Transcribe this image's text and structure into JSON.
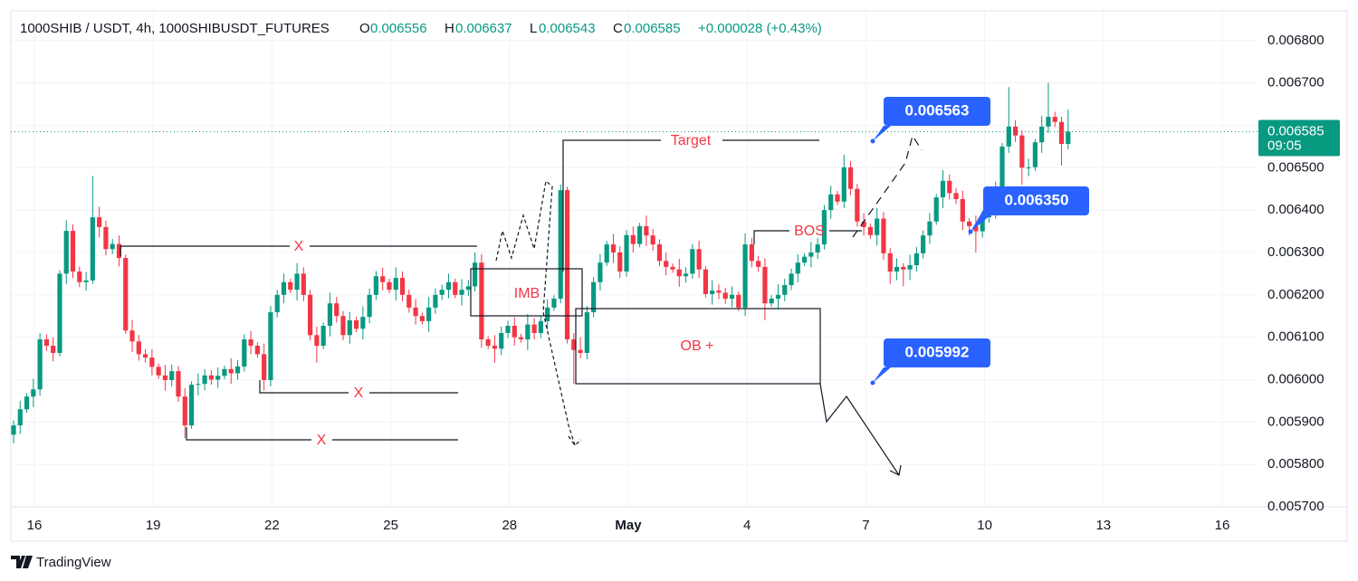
{
  "header": {
    "symbol": "1000SHIB / USDT, 4h, 1000SHIBUSDT_FUTURES",
    "o_label": "O",
    "o": "0.006556",
    "h_label": "H",
    "h": "0.006637",
    "l_label": "L",
    "l": "0.006543",
    "c_label": "C",
    "c": "0.006585",
    "change": "+0.000028 (+0.43%)"
  },
  "chart_data": {
    "type": "candlestick",
    "up_color": "#089981",
    "down_color": "#f23645",
    "grid": true,
    "ylim": [
      0.0057,
      0.00687
    ],
    "yticks": [
      {
        "value": 0.0057,
        "label": "0.005700"
      },
      {
        "value": 0.0058,
        "label": "0.005800"
      },
      {
        "value": 0.0059,
        "label": "0.005900"
      },
      {
        "value": 0.006,
        "label": "0.006000"
      },
      {
        "value": 0.0061,
        "label": "0.006100"
      },
      {
        "value": 0.0062,
        "label": "0.006200"
      },
      {
        "value": 0.0063,
        "label": "0.006300"
      },
      {
        "value": 0.0064,
        "label": "0.006400"
      },
      {
        "value": 0.0065,
        "label": "0.006500"
      },
      {
        "value": 0.0066,
        "label": "0.006600"
      },
      {
        "value": 0.0067,
        "label": "0.006700"
      },
      {
        "value": 0.0068,
        "label": "0.006800"
      }
    ],
    "xticks": [
      "16",
      "19",
      "22",
      "25",
      "28",
      "May",
      "4",
      "7",
      "10",
      "13",
      "16"
    ],
    "last_price_label": "0.006585",
    "countdown": "09:05",
    "ohlc": [
      [
        0.00587,
        0.005904,
        0.00585,
        0.005892
      ],
      [
        0.005892,
        0.00595,
        0.005872,
        0.00593
      ],
      [
        0.00593,
        0.005968,
        0.005922,
        0.00596
      ],
      [
        0.00596,
        0.006002,
        0.005935,
        0.005977
      ],
      [
        0.005977,
        0.00611,
        0.005962,
        0.006095
      ],
      [
        0.006095,
        0.006107,
        0.006068,
        0.00608
      ],
      [
        0.00608,
        0.0061,
        0.006043,
        0.006063
      ],
      [
        0.006063,
        0.006258,
        0.006055,
        0.00625
      ],
      [
        0.00625,
        0.006376,
        0.006225,
        0.006351
      ],
      [
        0.006351,
        0.006366,
        0.00624,
        0.006255
      ],
      [
        0.006255,
        0.006267,
        0.006218,
        0.00623
      ],
      [
        0.00623,
        0.006254,
        0.00621,
        0.006234
      ],
      [
        0.006234,
        0.00648,
        0.006226,
        0.006383
      ],
      [
        0.006383,
        0.006408,
        0.006335,
        0.00636
      ],
      [
        0.00636,
        0.006375,
        0.006293,
        0.006308
      ],
      [
        0.006308,
        0.006332,
        0.006296,
        0.00632
      ],
      [
        0.00632,
        0.00634,
        0.006267,
        0.006287
      ],
      [
        0.006287,
        0.006295,
        0.006108,
        0.006116
      ],
      [
        0.006116,
        0.006141,
        0.006065,
        0.00609
      ],
      [
        0.00609,
        0.006105,
        0.006045,
        0.00606
      ],
      [
        0.00606,
        0.006072,
        0.00604,
        0.006052
      ],
      [
        0.006052,
        0.006072,
        0.00601,
        0.00603
      ],
      [
        0.00603,
        0.006038,
        0.006002,
        0.00601
      ],
      [
        0.00601,
        0.006035,
        0.005974,
        0.005999
      ],
      [
        0.005999,
        0.006035,
        0.005984,
        0.00602
      ],
      [
        0.00602,
        0.006032,
        0.005948,
        0.00596
      ],
      [
        0.00596,
        0.00598,
        0.005862,
        0.005892
      ],
      [
        0.005892,
        0.005996,
        0.005884,
        0.005988
      ],
      [
        0.005988,
        0.006015,
        0.005963,
        0.00599
      ],
      [
        0.00599,
        0.006025,
        0.005975,
        0.00601
      ],
      [
        0.00601,
        0.006022,
        0.005988,
        0.006
      ],
      [
        0.006,
        0.006029,
        0.00598,
        0.006009
      ],
      [
        0.006009,
        0.006033,
        0.006001,
        0.006025
      ],
      [
        0.006025,
        0.00605,
        0.00599,
        0.006015
      ],
      [
        0.006015,
        0.006046,
        0.006,
        0.006031
      ],
      [
        0.006031,
        0.006107,
        0.006019,
        0.006095
      ],
      [
        0.006095,
        0.006115,
        0.00606,
        0.00608
      ],
      [
        0.00608,
        0.006088,
        0.006052,
        0.00606
      ],
      [
        0.00606,
        0.006085,
        0.005974,
        0.005999
      ],
      [
        0.005999,
        0.006174,
        0.005984,
        0.006159
      ],
      [
        0.006159,
        0.006212,
        0.006147,
        0.0062
      ],
      [
        0.0062,
        0.00625,
        0.00618,
        0.00623
      ],
      [
        0.00623,
        0.006238,
        0.006204,
        0.006212
      ],
      [
        0.006212,
        0.006275,
        0.006187,
        0.00625
      ],
      [
        0.00625,
        0.006265,
        0.006185,
        0.0062
      ],
      [
        0.0062,
        0.006212,
        0.006093,
        0.006105
      ],
      [
        0.006105,
        0.006125,
        0.00604,
        0.00608
      ],
      [
        0.00608,
        0.006135,
        0.006072,
        0.006127
      ],
      [
        0.006127,
        0.006205,
        0.006102,
        0.00618
      ],
      [
        0.00618,
        0.006195,
        0.006135,
        0.00615
      ],
      [
        0.00615,
        0.006162,
        0.006093,
        0.006105
      ],
      [
        0.006105,
        0.00616,
        0.006085,
        0.00614
      ],
      [
        0.00614,
        0.006148,
        0.006112,
        0.00612
      ],
      [
        0.00612,
        0.006173,
        0.006095,
        0.006148
      ],
      [
        0.006148,
        0.006215,
        0.006133,
        0.0062
      ],
      [
        0.0062,
        0.006256,
        0.006188,
        0.006244
      ],
      [
        0.006244,
        0.006264,
        0.00621,
        0.00623
      ],
      [
        0.00623,
        0.006238,
        0.006204,
        0.006212
      ],
      [
        0.006212,
        0.006265,
        0.006187,
        0.00624
      ],
      [
        0.00624,
        0.006255,
        0.006185,
        0.0062
      ],
      [
        0.0062,
        0.006212,
        0.006158,
        0.00617
      ],
      [
        0.00617,
        0.00619,
        0.00613,
        0.00615
      ],
      [
        0.00615,
        0.006158,
        0.00613,
        0.006138
      ],
      [
        0.006138,
        0.006195,
        0.006113,
        0.00617
      ],
      [
        0.00617,
        0.006215,
        0.006155,
        0.0062
      ],
      [
        0.0062,
        0.006224,
        0.006188,
        0.006212
      ],
      [
        0.006212,
        0.00625,
        0.006192,
        0.00623
      ],
      [
        0.00623,
        0.006238,
        0.006192,
        0.0062
      ],
      [
        0.0062,
        0.006237,
        0.006175,
        0.006212
      ],
      [
        0.006212,
        0.006235,
        0.006197,
        0.00622
      ],
      [
        0.00622,
        0.0063,
        0.006208,
        0.006276
      ],
      [
        0.006276,
        0.006296,
        0.006075,
        0.006095
      ],
      [
        0.006095,
        0.006103,
        0.006072,
        0.00608
      ],
      [
        0.00608,
        0.006105,
        0.00604,
        0.006073
      ],
      [
        0.006073,
        0.006125,
        0.006058,
        0.00611
      ],
      [
        0.00611,
        0.006139,
        0.006098,
        0.006127
      ],
      [
        0.006127,
        0.006147,
        0.00608,
        0.0061
      ],
      [
        0.0061,
        0.006108,
        0.006087,
        0.006095
      ],
      [
        0.006095,
        0.006155,
        0.00607,
        0.00613
      ],
      [
        0.00613,
        0.006145,
        0.006095,
        0.00611
      ],
      [
        0.00611,
        0.00615,
        0.006098,
        0.006138
      ],
      [
        0.006138,
        0.00619,
        0.006118,
        0.00617
      ],
      [
        0.00617,
        0.006199,
        0.006162,
        0.006191
      ],
      [
        0.006191,
        0.00646,
        0.00618,
        0.006447
      ],
      [
        0.006447,
        0.006455,
        0.006085,
        0.006095
      ],
      [
        0.006095,
        0.00611,
        0.00599,
        0.00607
      ],
      [
        0.00607,
        0.0061,
        0.00605,
        0.006063
      ],
      [
        0.006063,
        0.006174,
        0.006048,
        0.006159
      ],
      [
        0.006159,
        0.006242,
        0.006147,
        0.00623
      ],
      [
        0.00623,
        0.006296,
        0.00621,
        0.006276
      ],
      [
        0.006276,
        0.006327,
        0.006268,
        0.006319
      ],
      [
        0.006319,
        0.006344,
        0.006275,
        0.0063
      ],
      [
        0.0063,
        0.006315,
        0.00624,
        0.006255
      ],
      [
        0.006255,
        0.006353,
        0.006243,
        0.006341
      ],
      [
        0.006341,
        0.006361,
        0.0063,
        0.00632
      ],
      [
        0.00632,
        0.00637,
        0.006312,
        0.006362
      ],
      [
        0.006362,
        0.006387,
        0.006315,
        0.00634
      ],
      [
        0.00634,
        0.006355,
        0.006304,
        0.006319
      ],
      [
        0.006319,
        0.006331,
        0.006268,
        0.00628
      ],
      [
        0.00628,
        0.0063,
        0.006246,
        0.006266
      ],
      [
        0.006266,
        0.006274,
        0.006252,
        0.00626
      ],
      [
        0.00626,
        0.006285,
        0.006219,
        0.006244
      ],
      [
        0.006244,
        0.006265,
        0.006229,
        0.00625
      ],
      [
        0.00625,
        0.00632,
        0.006238,
        0.006308
      ],
      [
        0.006308,
        0.006328,
        0.00624,
        0.00626
      ],
      [
        0.00626,
        0.006268,
        0.006194,
        0.006202
      ],
      [
        0.006202,
        0.006235,
        0.006177,
        0.00621
      ],
      [
        0.00621,
        0.006225,
        0.00619,
        0.006205
      ],
      [
        0.006205,
        0.006217,
        0.006179,
        0.006191
      ],
      [
        0.006191,
        0.00622,
        0.006171,
        0.0062
      ],
      [
        0.0062,
        0.006208,
        0.006162,
        0.00617
      ],
      [
        0.00617,
        0.006345,
        0.00615,
        0.006319
      ],
      [
        0.006319,
        0.006334,
        0.006265,
        0.00628
      ],
      [
        0.00628,
        0.006292,
        0.006254,
        0.006266
      ],
      [
        0.006266,
        0.006286,
        0.00614,
        0.00618
      ],
      [
        0.00618,
        0.006199,
        0.006172,
        0.006191
      ],
      [
        0.006191,
        0.006225,
        0.006166,
        0.0062
      ],
      [
        0.0062,
        0.006238,
        0.006185,
        0.006223
      ],
      [
        0.006223,
        0.006262,
        0.006211,
        0.00625
      ],
      [
        0.00625,
        0.006296,
        0.00623,
        0.006276
      ],
      [
        0.006276,
        0.006298,
        0.006268,
        0.00629
      ],
      [
        0.00629,
        0.006325,
        0.006265,
        0.0063
      ],
      [
        0.0063,
        0.006334,
        0.006285,
        0.006319
      ],
      [
        0.006319,
        0.006412,
        0.006307,
        0.0064
      ],
      [
        0.0064,
        0.006457,
        0.00638,
        0.006437
      ],
      [
        0.006437,
        0.006445,
        0.006412,
        0.00642
      ],
      [
        0.00642,
        0.00653,
        0.006405,
        0.006501
      ],
      [
        0.006501,
        0.006516,
        0.006435,
        0.00645
      ],
      [
        0.00645,
        0.006462,
        0.006361,
        0.006373
      ],
      [
        0.006373,
        0.006393,
        0.00634,
        0.00636
      ],
      [
        0.00636,
        0.006368,
        0.006333,
        0.006341
      ],
      [
        0.006341,
        0.006405,
        0.006316,
        0.00638
      ],
      [
        0.00638,
        0.006395,
        0.006283,
        0.006298
      ],
      [
        0.006298,
        0.00631,
        0.006225,
        0.006255
      ],
      [
        0.006255,
        0.006286,
        0.006235,
        0.006266
      ],
      [
        0.006266,
        0.006275,
        0.00622,
        0.00626
      ],
      [
        0.00626,
        0.006295,
        0.006235,
        0.00627
      ],
      [
        0.00627,
        0.006313,
        0.006255,
        0.006298
      ],
      [
        0.006298,
        0.006352,
        0.006286,
        0.00634
      ],
      [
        0.00634,
        0.006393,
        0.00632,
        0.006373
      ],
      [
        0.006373,
        0.006438,
        0.006365,
        0.00643
      ],
      [
        0.00643,
        0.006494,
        0.006405,
        0.006469
      ],
      [
        0.006469,
        0.006484,
        0.006425,
        0.00644
      ],
      [
        0.00644,
        0.006452,
        0.006414,
        0.006426
      ],
      [
        0.006426,
        0.006446,
        0.006353,
        0.006373
      ],
      [
        0.006373,
        0.006381,
        0.00634,
        0.006362
      ],
      [
        0.006362,
        0.006387,
        0.0063,
        0.00635
      ],
      [
        0.00635,
        0.006398,
        0.006335,
        0.006383
      ],
      [
        0.006383,
        0.006412,
        0.006371,
        0.0064
      ],
      [
        0.0064,
        0.006467,
        0.00638,
        0.006447
      ],
      [
        0.006447,
        0.006558,
        0.006439,
        0.00655
      ],
      [
        0.00655,
        0.00669,
        0.006535,
        0.006597
      ],
      [
        0.006597,
        0.006612,
        0.006561,
        0.006576
      ],
      [
        0.006576,
        0.006588,
        0.00646,
        0.0065
      ],
      [
        0.0065,
        0.006521,
        0.00648,
        0.006501
      ],
      [
        0.006501,
        0.006568,
        0.006493,
        0.00656
      ],
      [
        0.00656,
        0.006622,
        0.006535,
        0.006597
      ],
      [
        0.006597,
        0.0067,
        0.006582,
        0.00662
      ],
      [
        0.00662,
        0.006632,
        0.006596,
        0.006608
      ],
      [
        0.006608,
        0.00662,
        0.006505,
        0.006556
      ],
      [
        0.006556,
        0.006637,
        0.006543,
        0.006585
      ]
    ]
  },
  "annotations": {
    "target": "Target",
    "x1": "X",
    "x2": "X",
    "x3": "X",
    "imb": "IMB",
    "ob": "OB +",
    "bos": "BOS",
    "callout1": "0.006563",
    "callout2": "0.006350",
    "callout3": "0.005992"
  },
  "logo": "TradingView"
}
